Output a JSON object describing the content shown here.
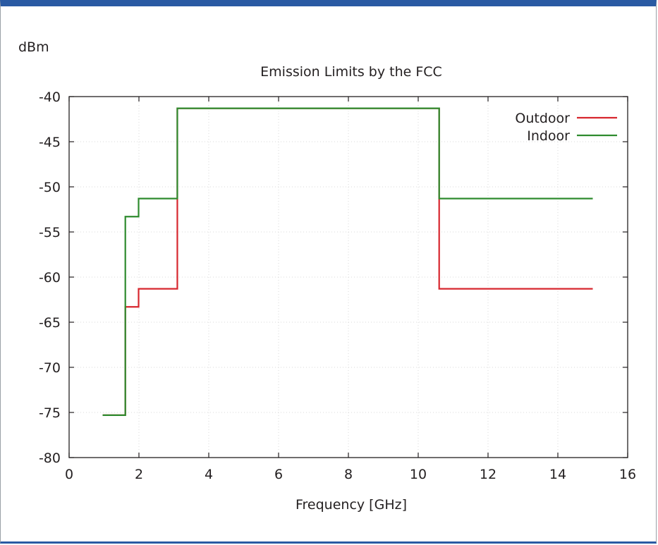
{
  "chart_data": {
    "type": "line",
    "title": "Emission Limits by the FCC",
    "ylabel": "dBm",
    "xlabel": "Frequency [GHz]",
    "xlim": [
      0,
      16
    ],
    "ylim": [
      -80,
      -40
    ],
    "xticks": [
      0,
      2,
      4,
      6,
      8,
      10,
      12,
      14,
      16
    ],
    "yticks": [
      -40,
      -45,
      -50,
      -55,
      -60,
      -65,
      -70,
      -75,
      -80
    ],
    "xtick_labels": [
      "0",
      "2",
      "4",
      "6",
      "8",
      "10",
      "12",
      "14",
      "16"
    ],
    "ytick_labels": [
      "-40",
      "-45",
      "-50",
      "-55",
      "-60",
      "-65",
      "-70",
      "-75",
      "-80"
    ],
    "grid": true,
    "legend_position": "top-right",
    "series": [
      {
        "name": "Outdoor",
        "color": "#d7262e",
        "step": true,
        "x": [
          0.96,
          1.61,
          1.99,
          3.1,
          10.6,
          15.0
        ],
        "y": [
          -75.3,
          -63.3,
          -61.3,
          -41.3,
          -61.3,
          -61.3
        ]
      },
      {
        "name": "Indoor",
        "color": "#2e8b2e",
        "step": true,
        "x": [
          0.96,
          1.61,
          1.99,
          3.1,
          10.6,
          15.0
        ],
        "y": [
          -75.3,
          -53.3,
          -51.3,
          -41.3,
          -51.3,
          -51.3
        ]
      }
    ]
  }
}
